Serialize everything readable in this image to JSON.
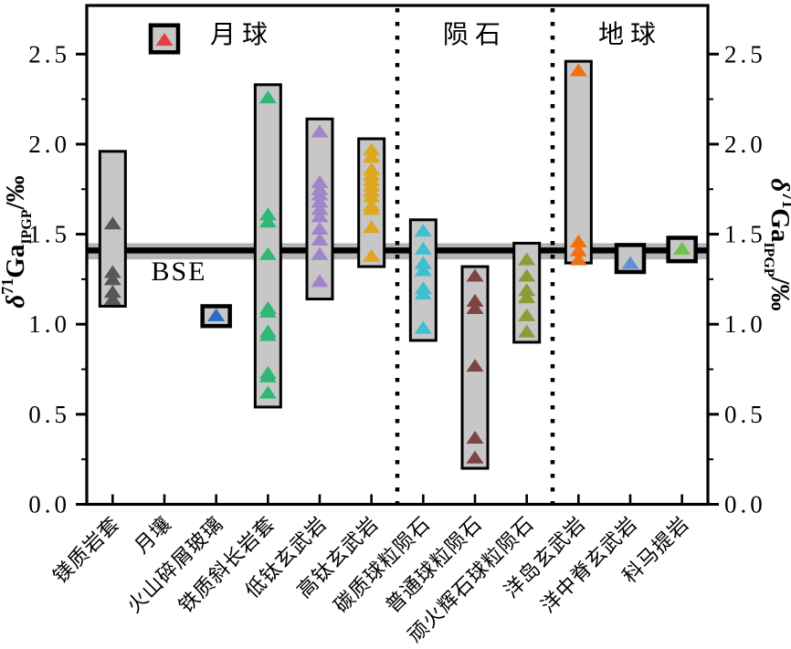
{
  "figure": {
    "background": "#ffffff",
    "bar_fill": "#c7c7c7",
    "bar_stroke": "#000000",
    "axis_color": "#000000",
    "separator_style": "dotted"
  },
  "y_axis": {
    "label_parts": {
      "delta": "δ",
      "isotope": "71",
      "element": "Ga",
      "standard": "IPGP",
      "unit": "/‰"
    },
    "tick_labels": [
      "0.0",
      "0.5",
      "1.0",
      "1.5",
      "2.0",
      "2.5"
    ]
  },
  "chart_data": {
    "type": "scatter",
    "marker": "triangle-up",
    "title": "",
    "ylabel": "δ71Ga IPGP /‰",
    "ylim": [
      0,
      2.77
    ],
    "yticks": [
      0,
      0.5,
      1.0,
      1.5,
      2.0,
      2.5
    ],
    "yticks_minor": [
      0.25,
      0.75,
      1.25,
      1.75,
      2.25
    ],
    "grid": false,
    "legend_position": "none",
    "reference_line": {
      "label": "BSE",
      "value": 1.41,
      "band": [
        1.36,
        1.45
      ],
      "line_color": "#000000",
      "band_color": "#b4b4b4"
    },
    "sections": [
      {
        "label": "月球",
        "from": 0,
        "to": 6
      },
      {
        "label": "陨石",
        "from": 6,
        "to": 9
      },
      {
        "label": "地球",
        "from": 9,
        "to": 12
      }
    ],
    "groups": [
      {
        "name": "镁质岩套",
        "section": "月球",
        "color": "#575757",
        "range": [
          1.1,
          1.96
        ],
        "values": [
          1.56,
          1.29,
          1.25,
          1.18,
          1.14
        ]
      },
      {
        "name": "月壤",
        "section": "月球",
        "color": "#e73f3f",
        "range": [
          2.51,
          2.66
        ],
        "values": [
          2.58
        ]
      },
      {
        "name": "火山碎屑玻璃",
        "section": "月球",
        "color": "#2d6cc1",
        "range": [
          0.99,
          1.1
        ],
        "values": [
          1.05
        ]
      },
      {
        "name": "铁质斜长岩套",
        "section": "月球",
        "color": "#2eb874",
        "range": [
          0.54,
          2.33
        ],
        "values": [
          2.26,
          1.61,
          1.57,
          1.39,
          1.09,
          1.07,
          0.96,
          0.94,
          0.73,
          0.71,
          0.62
        ]
      },
      {
        "name": "低钛玄武岩",
        "section": "月球",
        "color": "#a284cb",
        "range": [
          1.14,
          2.14
        ],
        "values": [
          2.07,
          1.79,
          1.75,
          1.72,
          1.68,
          1.64,
          1.6,
          1.53,
          1.47,
          1.39,
          1.24
        ]
      },
      {
        "name": "高钛玄武岩",
        "section": "月球",
        "color": "#dda71e",
        "range": [
          1.32,
          2.03
        ],
        "values": [
          1.97,
          1.93,
          1.86,
          1.83,
          1.8,
          1.77,
          1.74,
          1.71,
          1.66,
          1.64,
          1.54,
          1.38
        ]
      },
      {
        "name": "碳质球粒陨石",
        "section": "陨石",
        "color": "#3dbfcf",
        "range": [
          0.91,
          1.58
        ],
        "values": [
          1.52,
          1.42,
          1.34,
          1.3,
          1.2,
          1.17,
          0.98
        ]
      },
      {
        "name": "普通球粒陨石",
        "section": "陨石",
        "color": "#7e4444",
        "range": [
          0.2,
          1.32
        ],
        "values": [
          1.27,
          1.13,
          1.09,
          0.77,
          0.37,
          0.26
        ]
      },
      {
        "name": "顽火辉石球粒陨石",
        "section": "陨石",
        "color": "#8f9a34",
        "range": [
          0.9,
          1.45
        ],
        "values": [
          1.36,
          1.27,
          1.19,
          1.15,
          1.05,
          0.96
        ]
      },
      {
        "name": "洋岛玄武岩",
        "section": "地球",
        "color": "#f2700f",
        "range": [
          1.34,
          2.46
        ],
        "values": [
          2.41,
          1.46,
          1.41,
          1.36
        ]
      },
      {
        "name": "洋中脊玄武岩",
        "section": "地球",
        "color": "#6191d2",
        "range": [
          1.29,
          1.44
        ],
        "values": [
          1.34
        ]
      },
      {
        "name": "科马提岩",
        "section": "地球",
        "color": "#6fc04c",
        "range": [
          1.35,
          1.48
        ],
        "values": [
          1.42
        ]
      }
    ]
  }
}
